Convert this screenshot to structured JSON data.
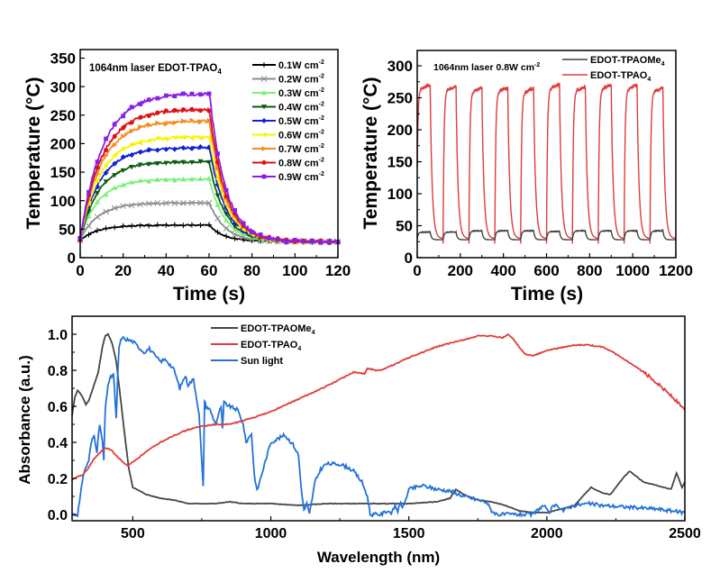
{
  "chart_data": [
    {
      "id": "power-dependent-heating",
      "type": "line",
      "title": "",
      "annotation": "1064nm laser  EDOT-TPAO",
      "annotation_sub": "4",
      "xlabel": "Time (s)",
      "ylabel": "Temperature (°C)",
      "xlim": [
        0,
        120
      ],
      "ylim": [
        0,
        365
      ],
      "xticks": [
        0,
        20,
        40,
        60,
        80,
        100,
        120
      ],
      "yticks": [
        0,
        50,
        100,
        150,
        200,
        250,
        300,
        350
      ],
      "grid": false,
      "legend_position": "top-right",
      "laser_off_time": 60,
      "ambient": 28,
      "series": [
        {
          "name": "0.1W cm",
          "sup": "-2",
          "color": "#000000",
          "marker": "plus",
          "start": 30,
          "plateau": 57
        },
        {
          "name": "0.2W cm",
          "sup": "-2",
          "color": "#8c8c8c",
          "marker": "cross",
          "start": 32,
          "plateau": 96
        },
        {
          "name": "0.3W cm",
          "sup": "-2",
          "color": "#7cf07c",
          "marker": "triangle-up",
          "start": 33,
          "plateau": 138
        },
        {
          "name": "0.4W cm",
          "sup": "-2",
          "color": "#0c5e0c",
          "marker": "triangle-down",
          "start": 33,
          "plateau": 168
        },
        {
          "name": "0.5W cm",
          "sup": "-2",
          "color": "#1020d8",
          "marker": "diamond",
          "start": 33,
          "plateau": 193
        },
        {
          "name": "0.6W cm",
          "sup": "-2",
          "color": "#f5f500",
          "marker": "triangle-left",
          "start": 33,
          "plateau": 212
        },
        {
          "name": "0.7W cm",
          "sup": "-2",
          "color": "#f58a20",
          "marker": "triangle-right",
          "start": 33,
          "plateau": 240
        },
        {
          "name": "0.8W cm",
          "sup": "-2",
          "color": "#e01010",
          "marker": "circle",
          "start": 33,
          "plateau": 260
        },
        {
          "name": "0.9W cm",
          "sup": "-2",
          "color": "#8a20e8",
          "marker": "square",
          "start": 33,
          "plateau": 288
        }
      ]
    },
    {
      "id": "cycling-stability",
      "type": "line",
      "title": "",
      "annotation": "1064nm laser 0.8W cm",
      "annotation_sup": "-2",
      "xlabel": "Time (s)",
      "ylabel": "Temperature (°C)",
      "xlim": [
        0,
        1200
      ],
      "ylim": [
        0,
        324
      ],
      "xticks": [
        0,
        200,
        400,
        600,
        800,
        1000,
        1200
      ],
      "yticks": [
        0,
        50,
        100,
        150,
        200,
        250,
        300
      ],
      "grid": false,
      "legend_position": "top-right",
      "cycles": 10,
      "cycle_period_s": 120,
      "on_duration_s": 60,
      "series": [
        {
          "name": "EDOT-TPAOMe",
          "sub": "4",
          "color": "#404040",
          "min": 28,
          "max": 41,
          "cycle_max": [
            40,
            40,
            42,
            42,
            42,
            41,
            42,
            42,
            42,
            42
          ]
        },
        {
          "name": "EDOT-TPAO",
          "sub": "4",
          "color": "#e03c3c",
          "min": 30,
          "max": 268,
          "cycle_max": [
            270,
            268,
            266,
            266,
            265,
            271,
            267,
            270,
            270,
            266
          ]
        }
      ]
    },
    {
      "id": "absorbance-spectra",
      "type": "line",
      "title": "",
      "xlabel": "Wavelength (nm)",
      "ylabel": "Absorbance (a.u.)",
      "xlim": [
        280,
        2500
      ],
      "ylim": [
        -0.035,
        1.1
      ],
      "xticks": [
        500,
        1000,
        1500,
        2000,
        2500
      ],
      "yticks": [
        0.0,
        0.2,
        0.4,
        0.6,
        0.8,
        1.0
      ],
      "ytick_labels": [
        "0.0",
        "0.2",
        "0.4",
        "0.6",
        "0.8",
        "1.0"
      ],
      "grid": false,
      "legend_position": "top-center",
      "series": [
        {
          "name": "EDOT-TPAOMe",
          "sub": "4",
          "color": "#454545",
          "x": [
            280,
            290,
            300,
            315,
            330,
            340,
            360,
            375,
            390,
            400,
            410,
            425,
            440,
            455,
            470,
            485,
            500,
            550,
            600,
            650,
            700,
            750,
            800,
            850,
            900,
            1000,
            1100,
            1200,
            1300,
            1400,
            1500,
            1600,
            1650,
            1670,
            1700,
            1750,
            1800,
            1850,
            1900,
            1950,
            2000,
            2050,
            2100,
            2130,
            2160,
            2200,
            2230,
            2280,
            2300,
            2350,
            2400,
            2450,
            2470,
            2490,
            2500
          ],
          "y": [
            0.55,
            0.65,
            0.69,
            0.66,
            0.61,
            0.63,
            0.72,
            0.79,
            0.93,
            0.99,
            1.0,
            0.95,
            0.85,
            0.65,
            0.45,
            0.26,
            0.15,
            0.11,
            0.09,
            0.08,
            0.06,
            0.06,
            0.06,
            0.07,
            0.06,
            0.06,
            0.05,
            0.06,
            0.06,
            0.06,
            0.06,
            0.07,
            0.09,
            0.14,
            0.11,
            0.08,
            0.07,
            0.05,
            0.02,
            0.01,
            0.01,
            0.03,
            0.05,
            0.1,
            0.15,
            0.12,
            0.11,
            0.21,
            0.24,
            0.18,
            0.16,
            0.14,
            0.23,
            0.15,
            0.18
          ]
        },
        {
          "name": "EDOT-TPAO",
          "sub": "4",
          "color": "#e03c3c",
          "x": [
            280,
            300,
            320,
            340,
            360,
            380,
            400,
            420,
            450,
            480,
            500,
            550,
            600,
            650,
            700,
            750,
            800,
            850,
            900,
            1000,
            1100,
            1200,
            1300,
            1340,
            1350,
            1380,
            1400,
            1500,
            1600,
            1700,
            1750,
            1800,
            1840,
            1860,
            1880,
            1920,
            1950,
            2000,
            2100,
            2150,
            2200,
            2250,
            2300,
            2350,
            2400,
            2450,
            2500
          ],
          "y": [
            0.19,
            0.21,
            0.22,
            0.26,
            0.31,
            0.34,
            0.37,
            0.36,
            0.31,
            0.27,
            0.29,
            0.35,
            0.4,
            0.44,
            0.47,
            0.49,
            0.5,
            0.5,
            0.52,
            0.57,
            0.64,
            0.71,
            0.79,
            0.78,
            0.81,
            0.8,
            0.8,
            0.87,
            0.93,
            0.97,
            0.99,
            0.99,
            0.98,
            1.0,
            0.97,
            0.89,
            0.88,
            0.91,
            0.94,
            0.94,
            0.93,
            0.89,
            0.84,
            0.79,
            0.73,
            0.66,
            0.58
          ]
        },
        {
          "name": "Sun light",
          "color": "#2272d8",
          "x": [
            280,
            300,
            310,
            320,
            340,
            350,
            360,
            370,
            380,
            390,
            395,
            400,
            410,
            420,
            430,
            440,
            445,
            450,
            460,
            480,
            500,
            520,
            540,
            560,
            580,
            600,
            620,
            650,
            670,
            690,
            700,
            720,
            740,
            755,
            760,
            765,
            780,
            800,
            820,
            825,
            830,
            850,
            880,
            900,
            910,
            930,
            940,
            950,
            970,
            1000,
            1050,
            1080,
            1100,
            1110,
            1120,
            1130,
            1140,
            1150,
            1160,
            1180,
            1200,
            1250,
            1280,
            1300,
            1330,
            1350,
            1360,
            1380,
            1400,
            1420,
            1440,
            1450,
            1460,
            1470,
            1480,
            1500,
            1550,
            1600,
            1650,
            1700,
            1750,
            1780,
            1800,
            1820,
            1850,
            1900,
            1950,
            1970,
            1990,
            2000,
            2010,
            2020,
            2040,
            2060,
            2080,
            2100,
            2150,
            2200,
            2300,
            2400,
            2450,
            2500
          ],
          "y": [
            0.0,
            0.0,
            0.1,
            0.22,
            0.3,
            0.4,
            0.44,
            0.35,
            0.5,
            0.4,
            0.3,
            0.58,
            0.72,
            0.76,
            0.78,
            0.53,
            0.75,
            0.93,
            0.98,
            0.97,
            0.96,
            0.93,
            0.9,
            0.92,
            0.88,
            0.85,
            0.86,
            0.8,
            0.7,
            0.77,
            0.72,
            0.75,
            0.56,
            0.15,
            0.63,
            0.6,
            0.58,
            0.5,
            0.6,
            0.47,
            0.62,
            0.6,
            0.58,
            0.5,
            0.4,
            0.45,
            0.22,
            0.13,
            0.24,
            0.4,
            0.44,
            0.39,
            0.33,
            0.15,
            0.02,
            0.06,
            0.0,
            0.09,
            0.18,
            0.25,
            0.28,
            0.28,
            0.26,
            0.24,
            0.18,
            0.1,
            0.0,
            0.0,
            0.0,
            0.02,
            0.01,
            0.05,
            0.02,
            0.06,
            0.04,
            0.14,
            0.16,
            0.14,
            0.13,
            0.1,
            0.08,
            0.07,
            0.02,
            0.0,
            0.0,
            0.0,
            0.0,
            0.03,
            0.05,
            0.02,
            0.01,
            0.04,
            0.05,
            0.02,
            0.04,
            0.05,
            0.06,
            0.05,
            0.04,
            0.03,
            0.02,
            0.01
          ]
        }
      ]
    }
  ]
}
